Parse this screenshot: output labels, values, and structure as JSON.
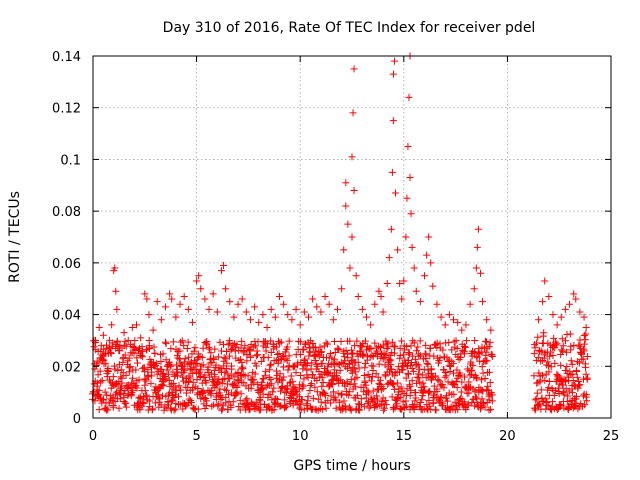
{
  "chart_data": {
    "type": "scatter",
    "title": "Day 310 of 2016, Rate Of TEC Index for receiver pdel",
    "xlabel": "GPS time / hours",
    "ylabel": "ROTI / TECUs",
    "xlim": [
      0,
      25
    ],
    "ylim": [
      0,
      0.14
    ],
    "xticks": [
      0,
      5,
      10,
      15,
      20,
      25
    ],
    "xtick_labels": [
      "0",
      "5",
      "10",
      "15",
      "20",
      "25"
    ],
    "yticks": [
      0,
      0.02,
      0.04,
      0.06,
      0.08,
      0.1,
      0.12,
      0.14
    ],
    "ytick_labels": [
      "0",
      "0.02",
      "0.04",
      "0.06",
      "0.08",
      "0.1",
      "0.12",
      "0.14"
    ],
    "grid": true,
    "marker": "+",
    "color": "#ff0000",
    "series": [
      {
        "name": "ROTI",
        "points": [
          [
            0.1,
            0.03
          ],
          [
            0.2,
            0.022
          ],
          [
            0.3,
            0.035
          ],
          [
            0.4,
            0.028
          ],
          [
            0.5,
            0.032
          ],
          [
            0.6,
            0.025
          ],
          [
            0.8,
            0.03
          ],
          [
            0.9,
            0.036
          ],
          [
            1.0,
            0.057
          ],
          [
            1.05,
            0.058
          ],
          [
            1.1,
            0.049
          ],
          [
            1.15,
            0.042
          ],
          [
            1.3,
            0.028
          ],
          [
            1.5,
            0.033
          ],
          [
            1.7,
            0.03
          ],
          [
            1.9,
            0.035
          ],
          [
            2.1,
            0.036
          ],
          [
            2.3,
            0.031
          ],
          [
            2.5,
            0.048
          ],
          [
            2.6,
            0.046
          ],
          [
            2.7,
            0.04
          ],
          [
            2.9,
            0.034
          ],
          [
            3.1,
            0.045
          ],
          [
            3.3,
            0.038
          ],
          [
            3.5,
            0.043
          ],
          [
            3.7,
            0.048
          ],
          [
            3.8,
            0.046
          ],
          [
            4.0,
            0.039
          ],
          [
            4.2,
            0.044
          ],
          [
            4.4,
            0.047
          ],
          [
            4.6,
            0.042
          ],
          [
            4.8,
            0.037
          ],
          [
            5.0,
            0.053
          ],
          [
            5.1,
            0.055
          ],
          [
            5.2,
            0.05
          ],
          [
            5.4,
            0.046
          ],
          [
            5.6,
            0.042
          ],
          [
            5.8,
            0.048
          ],
          [
            6.0,
            0.041
          ],
          [
            6.2,
            0.057
          ],
          [
            6.3,
            0.059
          ],
          [
            6.4,
            0.05
          ],
          [
            6.6,
            0.045
          ],
          [
            6.8,
            0.039
          ],
          [
            7.0,
            0.044
          ],
          [
            7.2,
            0.046
          ],
          [
            7.4,
            0.041
          ],
          [
            7.6,
            0.038
          ],
          [
            7.8,
            0.043
          ],
          [
            8.0,
            0.037
          ],
          [
            8.2,
            0.04
          ],
          [
            8.4,
            0.035
          ],
          [
            8.6,
            0.042
          ],
          [
            8.8,
            0.039
          ],
          [
            9.0,
            0.047
          ],
          [
            9.2,
            0.044
          ],
          [
            9.4,
            0.04
          ],
          [
            9.6,
            0.038
          ],
          [
            9.8,
            0.042
          ],
          [
            10.0,
            0.036
          ],
          [
            10.2,
            0.041
          ],
          [
            10.4,
            0.039
          ],
          [
            10.6,
            0.046
          ],
          [
            10.8,
            0.043
          ],
          [
            11.0,
            0.041
          ],
          [
            11.2,
            0.047
          ],
          [
            11.4,
            0.044
          ],
          [
            11.6,
            0.038
          ],
          [
            11.8,
            0.042
          ],
          [
            12.0,
            0.05
          ],
          [
            12.1,
            0.065
          ],
          [
            12.2,
            0.082
          ],
          [
            12.2,
            0.091
          ],
          [
            12.3,
            0.075
          ],
          [
            12.4,
            0.058
          ],
          [
            12.5,
            0.101
          ],
          [
            12.55,
            0.118
          ],
          [
            12.6,
            0.135
          ],
          [
            12.6,
            0.088
          ],
          [
            12.5,
            0.07
          ],
          [
            12.7,
            0.055
          ],
          [
            12.8,
            0.047
          ],
          [
            13.0,
            0.042
          ],
          [
            13.2,
            0.039
          ],
          [
            13.4,
            0.036
          ],
          [
            13.6,
            0.044
          ],
          [
            13.8,
            0.049
          ],
          [
            13.9,
            0.047
          ],
          [
            14.0,
            0.041
          ],
          [
            14.2,
            0.052
          ],
          [
            14.3,
            0.062
          ],
          [
            14.4,
            0.073
          ],
          [
            14.45,
            0.095
          ],
          [
            14.5,
            0.115
          ],
          [
            14.5,
            0.133
          ],
          [
            14.55,
            0.138
          ],
          [
            14.6,
            0.087
          ],
          [
            14.7,
            0.065
          ],
          [
            14.8,
            0.052
          ],
          [
            14.9,
            0.046
          ],
          [
            15.0,
            0.053
          ],
          [
            15.1,
            0.07
          ],
          [
            15.15,
            0.085
          ],
          [
            15.2,
            0.105
          ],
          [
            15.25,
            0.124
          ],
          [
            15.3,
            0.14
          ],
          [
            15.3,
            0.093
          ],
          [
            15.35,
            0.079
          ],
          [
            15.4,
            0.066
          ],
          [
            15.5,
            0.058
          ],
          [
            15.6,
            0.049
          ],
          [
            15.8,
            0.045
          ],
          [
            16.0,
            0.055
          ],
          [
            16.1,
            0.063
          ],
          [
            16.2,
            0.07
          ],
          [
            16.3,
            0.06
          ],
          [
            16.4,
            0.051
          ],
          [
            16.6,
            0.044
          ],
          [
            16.8,
            0.039
          ],
          [
            17.0,
            0.036
          ],
          [
            17.2,
            0.04
          ],
          [
            17.4,
            0.038
          ],
          [
            17.6,
            0.037
          ],
          [
            17.8,
            0.034
          ],
          [
            18.0,
            0.036
          ],
          [
            18.2,
            0.044
          ],
          [
            18.4,
            0.05
          ],
          [
            18.5,
            0.058
          ],
          [
            18.55,
            0.066
          ],
          [
            18.6,
            0.073
          ],
          [
            18.7,
            0.056
          ],
          [
            18.8,
            0.045
          ],
          [
            19.0,
            0.038
          ],
          [
            19.2,
            0.034
          ],
          [
            21.5,
            0.038
          ],
          [
            21.7,
            0.045
          ],
          [
            21.8,
            0.053
          ],
          [
            22.0,
            0.047
          ],
          [
            22.2,
            0.04
          ],
          [
            22.4,
            0.036
          ],
          [
            22.6,
            0.039
          ],
          [
            22.8,
            0.042
          ],
          [
            23.0,
            0.044
          ],
          [
            23.2,
            0.048
          ],
          [
            23.3,
            0.046
          ],
          [
            23.5,
            0.041
          ],
          [
            23.7,
            0.039
          ],
          [
            23.8,
            0.035
          ]
        ]
      }
    ],
    "dense_band": {
      "description": "continuous base cluster of ROTI values",
      "segments": [
        {
          "x_start": 0.0,
          "x_end": 19.3,
          "y_min": 0.003,
          "y_max": 0.03
        },
        {
          "x_start": 21.3,
          "x_end": 23.9,
          "y_min": 0.003,
          "y_max": 0.033
        }
      ],
      "step_hours": 0.05,
      "points_per_step": 4
    }
  }
}
